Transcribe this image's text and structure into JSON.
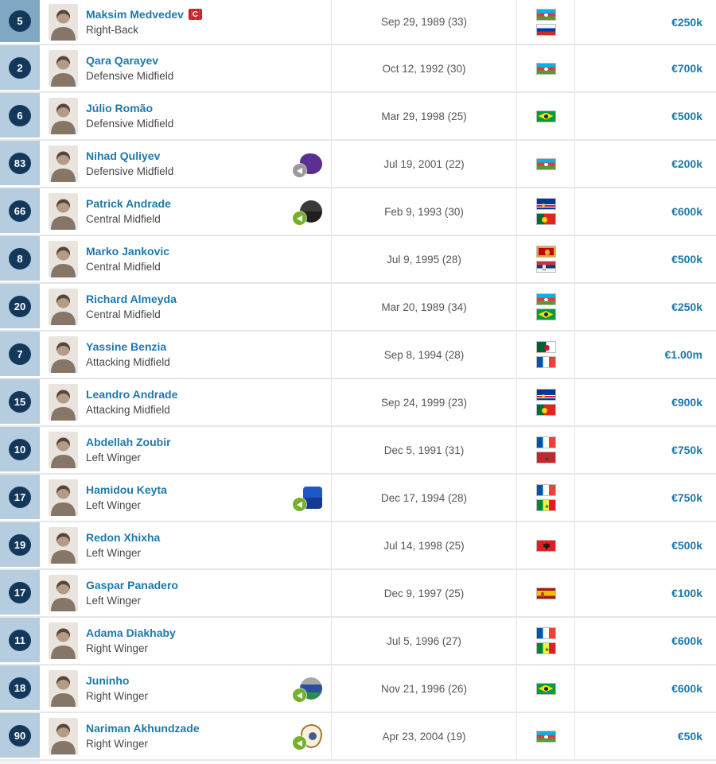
{
  "accent_colors": {
    "link_blue": "#1f78ab",
    "number_cell_bg": "#b5cdde",
    "number_cell_bg_highlight": "#81a8c2",
    "number_circle_bg": "#14385c",
    "captain_red": "#c0222c",
    "arrow_green": "#76b229",
    "arrow_gray": "#9a9a9a",
    "row_border": "#e7e7e7"
  },
  "squad_table": {
    "rows": [
      {
        "number": "5",
        "name": "Maksim Medvedev",
        "position": "Right-Back",
        "birth_date": "Sep 29, 1989 (33)",
        "flags": [
          "azerbaijan",
          "russia"
        ],
        "market_value": "€250k",
        "captain": true,
        "captain_label": "C",
        "number_highlighted": true,
        "transfer_badge": null
      },
      {
        "number": "2",
        "name": "Qara Qarayev",
        "position": "Defensive Midfield",
        "birth_date": "Oct 12, 1992 (30)",
        "flags": [
          "azerbaijan"
        ],
        "market_value": "€700k",
        "captain": false,
        "number_highlighted": false,
        "transfer_badge": null
      },
      {
        "number": "6",
        "name": "Júlio Romão",
        "position": "Defensive Midfield",
        "birth_date": "Mar 29, 1998 (25)",
        "flags": [
          "brazil"
        ],
        "market_value": "€500k",
        "captain": false,
        "number_highlighted": false,
        "transfer_badge": null
      },
      {
        "number": "83",
        "name": "Nihad Quliyev",
        "position": "Defensive Midfield",
        "birth_date": "Jul 19, 2001 (22)",
        "flags": [
          "azerbaijan"
        ],
        "market_value": "€200k",
        "captain": false,
        "number_highlighted": false,
        "transfer_badge": {
          "shape": "blob",
          "colors": [
            "#5a2f91"
          ],
          "border_color": null,
          "arrow_color": "gray"
        }
      },
      {
        "number": "66",
        "name": "Patrick Andrade",
        "position": "Central Midfield",
        "birth_date": "Feb 9, 1993 (30)",
        "flags": [
          "cape-verde",
          "portugal"
        ],
        "market_value": "€600k",
        "captain": false,
        "number_highlighted": false,
        "transfer_badge": {
          "shape": "round",
          "colors": [
            "#3a3a3a",
            "#1f1f1f"
          ],
          "border_color": null,
          "arrow_color": "green"
        }
      },
      {
        "number": "8",
        "name": "Marko Jankovic",
        "position": "Central Midfield",
        "birth_date": "Jul 9, 1995 (28)",
        "flags": [
          "montenegro",
          "serbia"
        ],
        "market_value": "€500k",
        "captain": false,
        "number_highlighted": false,
        "transfer_badge": null
      },
      {
        "number": "20",
        "name": "Richard Almeyda",
        "position": "Central Midfield",
        "birth_date": "Mar 20, 1989 (34)",
        "flags": [
          "azerbaijan",
          "brazil"
        ],
        "market_value": "€250k",
        "captain": false,
        "number_highlighted": false,
        "transfer_badge": null
      },
      {
        "number": "7",
        "name": "Yassine Benzia",
        "position": "Attacking Midfield",
        "birth_date": "Sep 8, 1994 (28)",
        "flags": [
          "algeria",
          "france"
        ],
        "market_value": "€1.00m",
        "captain": false,
        "number_highlighted": false,
        "transfer_badge": null
      },
      {
        "number": "15",
        "name": "Leandro Andrade",
        "position": "Attacking Midfield",
        "birth_date": "Sep 24, 1999 (23)",
        "flags": [
          "cape-verde",
          "portugal"
        ],
        "market_value": "€900k",
        "captain": false,
        "number_highlighted": false,
        "transfer_badge": null
      },
      {
        "number": "10",
        "name": "Abdellah Zoubir",
        "position": "Left Winger",
        "birth_date": "Dec 5, 1991 (31)",
        "flags": [
          "france",
          "morocco"
        ],
        "market_value": "€750k",
        "captain": false,
        "number_highlighted": false,
        "transfer_badge": null
      },
      {
        "number": "17",
        "name": "Hamidou Keyta",
        "position": "Left Winger",
        "birth_date": "Dec 17, 1994 (28)",
        "flags": [
          "france",
          "senegal"
        ],
        "market_value": "€750k",
        "captain": false,
        "number_highlighted": false,
        "transfer_badge": {
          "shape": "rect",
          "colors": [
            "#2056c7",
            "#123a8f"
          ],
          "border_color": null,
          "arrow_color": "green"
        }
      },
      {
        "number": "19",
        "name": "Redon Xhixha",
        "position": "Left Winger",
        "birth_date": "Jul 14, 1998 (25)",
        "flags": [
          "albania"
        ],
        "market_value": "€500k",
        "captain": false,
        "number_highlighted": false,
        "transfer_badge": null
      },
      {
        "number": "17",
        "name": "Gaspar Panadero",
        "position": "Left Winger",
        "birth_date": "Dec 9, 1997 (25)",
        "flags": [
          "spain"
        ],
        "market_value": "€100k",
        "captain": false,
        "number_highlighted": false,
        "transfer_badge": null
      },
      {
        "number": "11",
        "name": "Adama Diakhaby",
        "position": "Right Winger",
        "birth_date": "Jul 5, 1996 (27)",
        "flags": [
          "france",
          "senegal"
        ],
        "market_value": "€600k",
        "captain": false,
        "number_highlighted": false,
        "transfer_badge": null
      },
      {
        "number": "18",
        "name": "Juninho",
        "position": "Right Winger",
        "birth_date": "Nov 21, 1996 (26)",
        "flags": [
          "brazil"
        ],
        "market_value": "€600k",
        "captain": false,
        "number_highlighted": false,
        "transfer_badge": {
          "shape": "round",
          "colors": [
            "#a8a8a8",
            "#2b4f9e",
            "#2e8b4f"
          ],
          "border_color": null,
          "arrow_color": "green"
        }
      },
      {
        "number": "90",
        "name": "Nariman Akhundzade",
        "position": "Right Winger",
        "birth_date": "Apr 23, 2004 (19)",
        "flags": [
          "azerbaijan"
        ],
        "market_value": "€50k",
        "captain": false,
        "number_highlighted": false,
        "transfer_badge": {
          "shape": "shield",
          "colors": [
            "#f7f0dd"
          ],
          "border_color": "#a8762f",
          "arrow_color": "green"
        }
      }
    ]
  }
}
